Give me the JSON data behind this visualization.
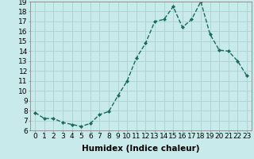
{
  "x": [
    0,
    1,
    2,
    3,
    4,
    5,
    6,
    7,
    8,
    9,
    10,
    11,
    12,
    13,
    14,
    15,
    16,
    17,
    18,
    19,
    20,
    21,
    22,
    23
  ],
  "y": [
    7.8,
    7.2,
    7.2,
    6.8,
    6.6,
    6.4,
    6.7,
    7.6,
    7.9,
    9.5,
    11.0,
    13.3,
    14.8,
    17.0,
    17.2,
    18.5,
    16.4,
    17.2,
    19.0,
    15.7,
    14.1,
    14.0,
    13.0,
    11.5
  ],
  "line_color": "#1a6b5a",
  "marker": "D",
  "marker_size": 2.0,
  "bg_color": "#c8eaea",
  "grid_color": "#aed4d4",
  "xlabel": "Humidex (Indice chaleur)",
  "ylim": [
    6,
    19
  ],
  "xlim": [
    -0.5,
    23.5
  ],
  "yticks": [
    6,
    7,
    8,
    9,
    10,
    11,
    12,
    13,
    14,
    15,
    16,
    17,
    18,
    19
  ],
  "xticks": [
    0,
    1,
    2,
    3,
    4,
    5,
    6,
    7,
    8,
    9,
    10,
    11,
    12,
    13,
    14,
    15,
    16,
    17,
    18,
    19,
    20,
    21,
    22,
    23
  ],
  "xlabel_fontsize": 7.5,
  "tick_fontsize": 6.5,
  "linewidth": 1.0
}
